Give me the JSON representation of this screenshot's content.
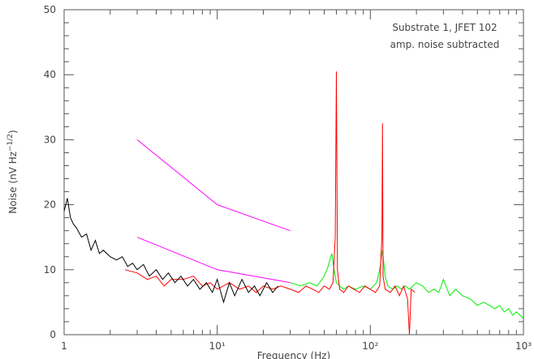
{
  "chart_data": {
    "type": "line",
    "xscale": "log",
    "xlabel": "Frequency (Hz)",
    "ylabel": [
      "Noise (nV Hz",
      "−1/2",
      ")"
    ],
    "annotations": [
      "Substrate 1, JFET 102",
      "amp. noise subtracted"
    ],
    "xlim": [
      1,
      1000
    ],
    "ylim": [
      0,
      50
    ],
    "xticks": [
      1,
      {
        "value": 10,
        "label": "10¹"
      },
      {
        "value": 100,
        "label": "10²"
      },
      {
        "value": 1000,
        "label": "10³"
      }
    ],
    "yticks": [
      0,
      10,
      20,
      30,
      40,
      50
    ],
    "series": [
      {
        "color": "#00ee00",
        "x": [
          30,
          35,
          40,
          45,
          50,
          53,
          56,
          58,
          60,
          63,
          67,
          72,
          80,
          90,
          100,
          110,
          115,
          120,
          125,
          130,
          140,
          150,
          160,
          170,
          180,
          200,
          220,
          240,
          260,
          280,
          300,
          330,
          360,
          400,
          450,
          500,
          550,
          600,
          650,
          700,
          750,
          800,
          850,
          900,
          950,
          1000
        ],
        "values": [
          8,
          7.5,
          8,
          7.5,
          9,
          10.5,
          12.5,
          10,
          8,
          7.5,
          7,
          7.5,
          7,
          7.5,
          7,
          8,
          10,
          13,
          9,
          7.5,
          7,
          7.5,
          7,
          7.5,
          7,
          8,
          7.5,
          6.5,
          7,
          6.5,
          8.5,
          6,
          7,
          6,
          5.5,
          4.5,
          5,
          4.5,
          4,
          4.5,
          3.5,
          4,
          3,
          3.5,
          3,
          2.5
        ]
      },
      {
        "color": "#ff0000",
        "x": [
          2.5,
          3,
          3.5,
          4,
          4.5,
          5,
          6,
          7,
          8,
          9,
          10,
          12,
          14,
          16,
          18,
          20,
          23,
          26,
          30,
          34,
          38,
          42,
          46,
          50,
          54,
          57,
          59,
          60,
          61,
          63,
          67,
          72,
          78,
          85,
          92,
          100,
          108,
          115,
          119,
          120,
          121,
          125,
          135,
          145,
          155,
          165,
          175,
          180,
          185,
          195
        ],
        "values": [
          10,
          9.5,
          8.5,
          9,
          7.5,
          8.5,
          8.5,
          9,
          7.5,
          8,
          7,
          8,
          7,
          7.5,
          6.5,
          7.5,
          7,
          7.5,
          7,
          6.5,
          7.5,
          7,
          6.5,
          7.5,
          7,
          8,
          15,
          40.5,
          10,
          7,
          6.5,
          7.5,
          7,
          6.5,
          7.5,
          7,
          6.5,
          7.5,
          15,
          32.5,
          9,
          7,
          6.5,
          7.5,
          6,
          7.5,
          5.5,
          0,
          7,
          6.5
        ]
      },
      {
        "color": "#000000",
        "x": [
          1,
          1.05,
          1.1,
          1.15,
          1.2,
          1.3,
          1.4,
          1.5,
          1.6,
          1.7,
          1.8,
          2,
          2.2,
          2.4,
          2.6,
          2.8,
          3,
          3.3,
          3.6,
          4,
          4.4,
          4.8,
          5.3,
          5.8,
          6.4,
          7,
          7.7,
          8.5,
          9.3,
          10,
          11,
          12,
          13,
          14.5,
          16,
          17.5,
          19,
          21,
          23,
          25
        ],
        "values": [
          19,
          21,
          18,
          17,
          16.5,
          15,
          15.5,
          13,
          14.5,
          12.5,
          13,
          12,
          11.5,
          12,
          10.5,
          11,
          10,
          10.8,
          9,
          10,
          8.5,
          9.5,
          8,
          9,
          7.5,
          8.5,
          7,
          8,
          6.5,
          8.5,
          5,
          8,
          6,
          8.5,
          6.5,
          7.5,
          6,
          8,
          6.5,
          7.5
        ]
      },
      {
        "color": "#ff00ff",
        "x": [
          3,
          10,
          30
        ],
        "values": [
          30,
          20,
          16
        ]
      },
      {
        "color": "#ff00ff",
        "x": [
          3,
          10,
          30
        ],
        "values": [
          15,
          10,
          8
        ]
      }
    ]
  }
}
